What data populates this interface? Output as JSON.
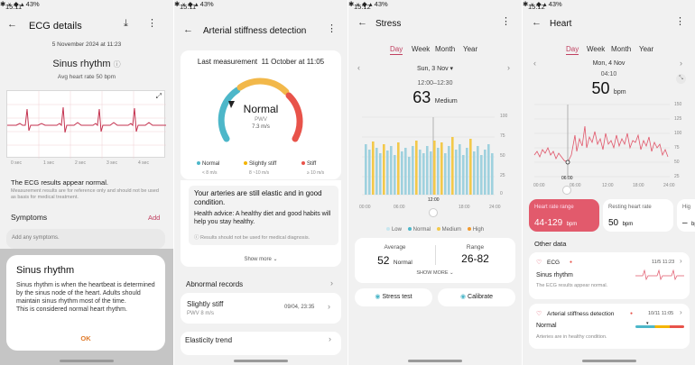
{
  "colors": {
    "accent": "#c04060",
    "normal": "#4db7c9",
    "slightly": "#f4b400",
    "stiff": "#e8534a",
    "heart": "#e05569",
    "orange": "#f29a2e"
  },
  "p1": {
    "status_time": "15:11",
    "status_icons": "✱ ⚹ ◆ ▴ 43%",
    "title": "ECG details",
    "date": "5 November 2024 at 11:23",
    "rhythm": "Sinus rhythm",
    "avg_hr": "Avg heart rate 50 bpm",
    "axis": [
      "0 sec",
      "1 sec",
      "2 sec",
      "3 sec",
      "4 sec"
    ],
    "result": "The ECG results appear normal.",
    "disclaimer": "Measurement results are for reference only and should not be used as basis for medical treatment.",
    "symptoms_label": "Symptoms",
    "add_label": "Add",
    "add_placeholder": "Add any symptoms.",
    "dialog": {
      "title": "Sinus rhythm",
      "body": "Sinus rhythm is when the heartbeat is determined by the sinus node of the heart. Adults should maintain sinus rhythm most of the time.\nThis is considered normal heart rhythm.",
      "ok": "OK"
    }
  },
  "p2": {
    "status_time": "15:11",
    "status_icons": "✱ ⚹ ◆ ▴ 43%",
    "title": "Arterial stiffness detection",
    "last_label": "Last measurement",
    "last_value": "11 October at 11:05",
    "gauge_state": "Normal",
    "pwv_label": "PWV",
    "pwv_value": "7.3 m/s",
    "legend": [
      {
        "name": "Normal",
        "range": "< 8 m/s"
      },
      {
        "name": "Slightly stiff",
        "range": "8 ~10 m/s"
      },
      {
        "name": "Stiff",
        "range": "≥ 10 m/s"
      }
    ],
    "assessment": "Your arteries are still elastic and in good condition.",
    "advice": "Health advice: A healthy diet and good habits will help you stay healthy.",
    "note": "Results should not be used for medical diagnosis.",
    "show_more": "Show more ⌄",
    "abnormal_label": "Abnormal records",
    "record_state": "Slightly stiff",
    "record_pwv": "PWV 8 m/s",
    "record_date": "09/04, 23:35",
    "elasticity_label": "Elasticity trend"
  },
  "p3": {
    "status_time": "15:12",
    "status_icons": "✱ ⚹ ◆ ▴ 43%",
    "title": "Stress",
    "tabs": [
      "Day",
      "Week",
      "Month",
      "Year"
    ],
    "date": "Sun, 3 Nov ▾",
    "time_range": "12:00–12:30",
    "value": "63",
    "value_label": "Medium",
    "y_ticks": [
      "100",
      "75",
      "50",
      "25",
      "0"
    ],
    "x_ticks": [
      "00:00",
      "06:00",
      "12:00",
      "18:00",
      "24:00"
    ],
    "legend": [
      "Low",
      "Normal",
      "Medium",
      "High"
    ],
    "avg_label": "Average",
    "avg_value": "52",
    "avg_state": "Normal",
    "range_label": "Range",
    "range_value": "26-82",
    "show_more": "SHOW MORE ⌄",
    "btn_test": "Stress test",
    "btn_cal": "Calibrate"
  },
  "p4": {
    "status_time": "15:12",
    "status_icons": "✱ ⚹ ◆ ▴ 43%",
    "title": "Heart",
    "tabs": [
      "Day",
      "Week",
      "Month",
      "Year"
    ],
    "date": "Mon, 4 Nov",
    "time": "04:10",
    "value": "50",
    "unit": "bpm",
    "y_ticks": [
      "150",
      "125",
      "100",
      "75",
      "50",
      "25"
    ],
    "x_ticks": [
      "00:00",
      "06:00",
      "12:00",
      "18:00",
      "24:00"
    ],
    "marker_time": "06:00",
    "range_label": "Heart rate range",
    "range_value": "44-129",
    "range_unit": "bpm",
    "resting_label": "Resting heart rate",
    "resting_value": "50",
    "resting_unit": "bpm",
    "third_label": "Hig",
    "third_value": "–",
    "third_unit": "bp",
    "other_label": "Other data",
    "ecg_label": "ECG",
    "ecg_date": "11/5 11:23",
    "ecg_state": "Sinus rhythm",
    "ecg_desc": "The ECG results appear normal.",
    "asd_label": "Arterial stiffness detection",
    "asd_date": "10/11 11:05",
    "asd_state": "Normal",
    "asd_desc": "Arteries are in healthy condition."
  }
}
